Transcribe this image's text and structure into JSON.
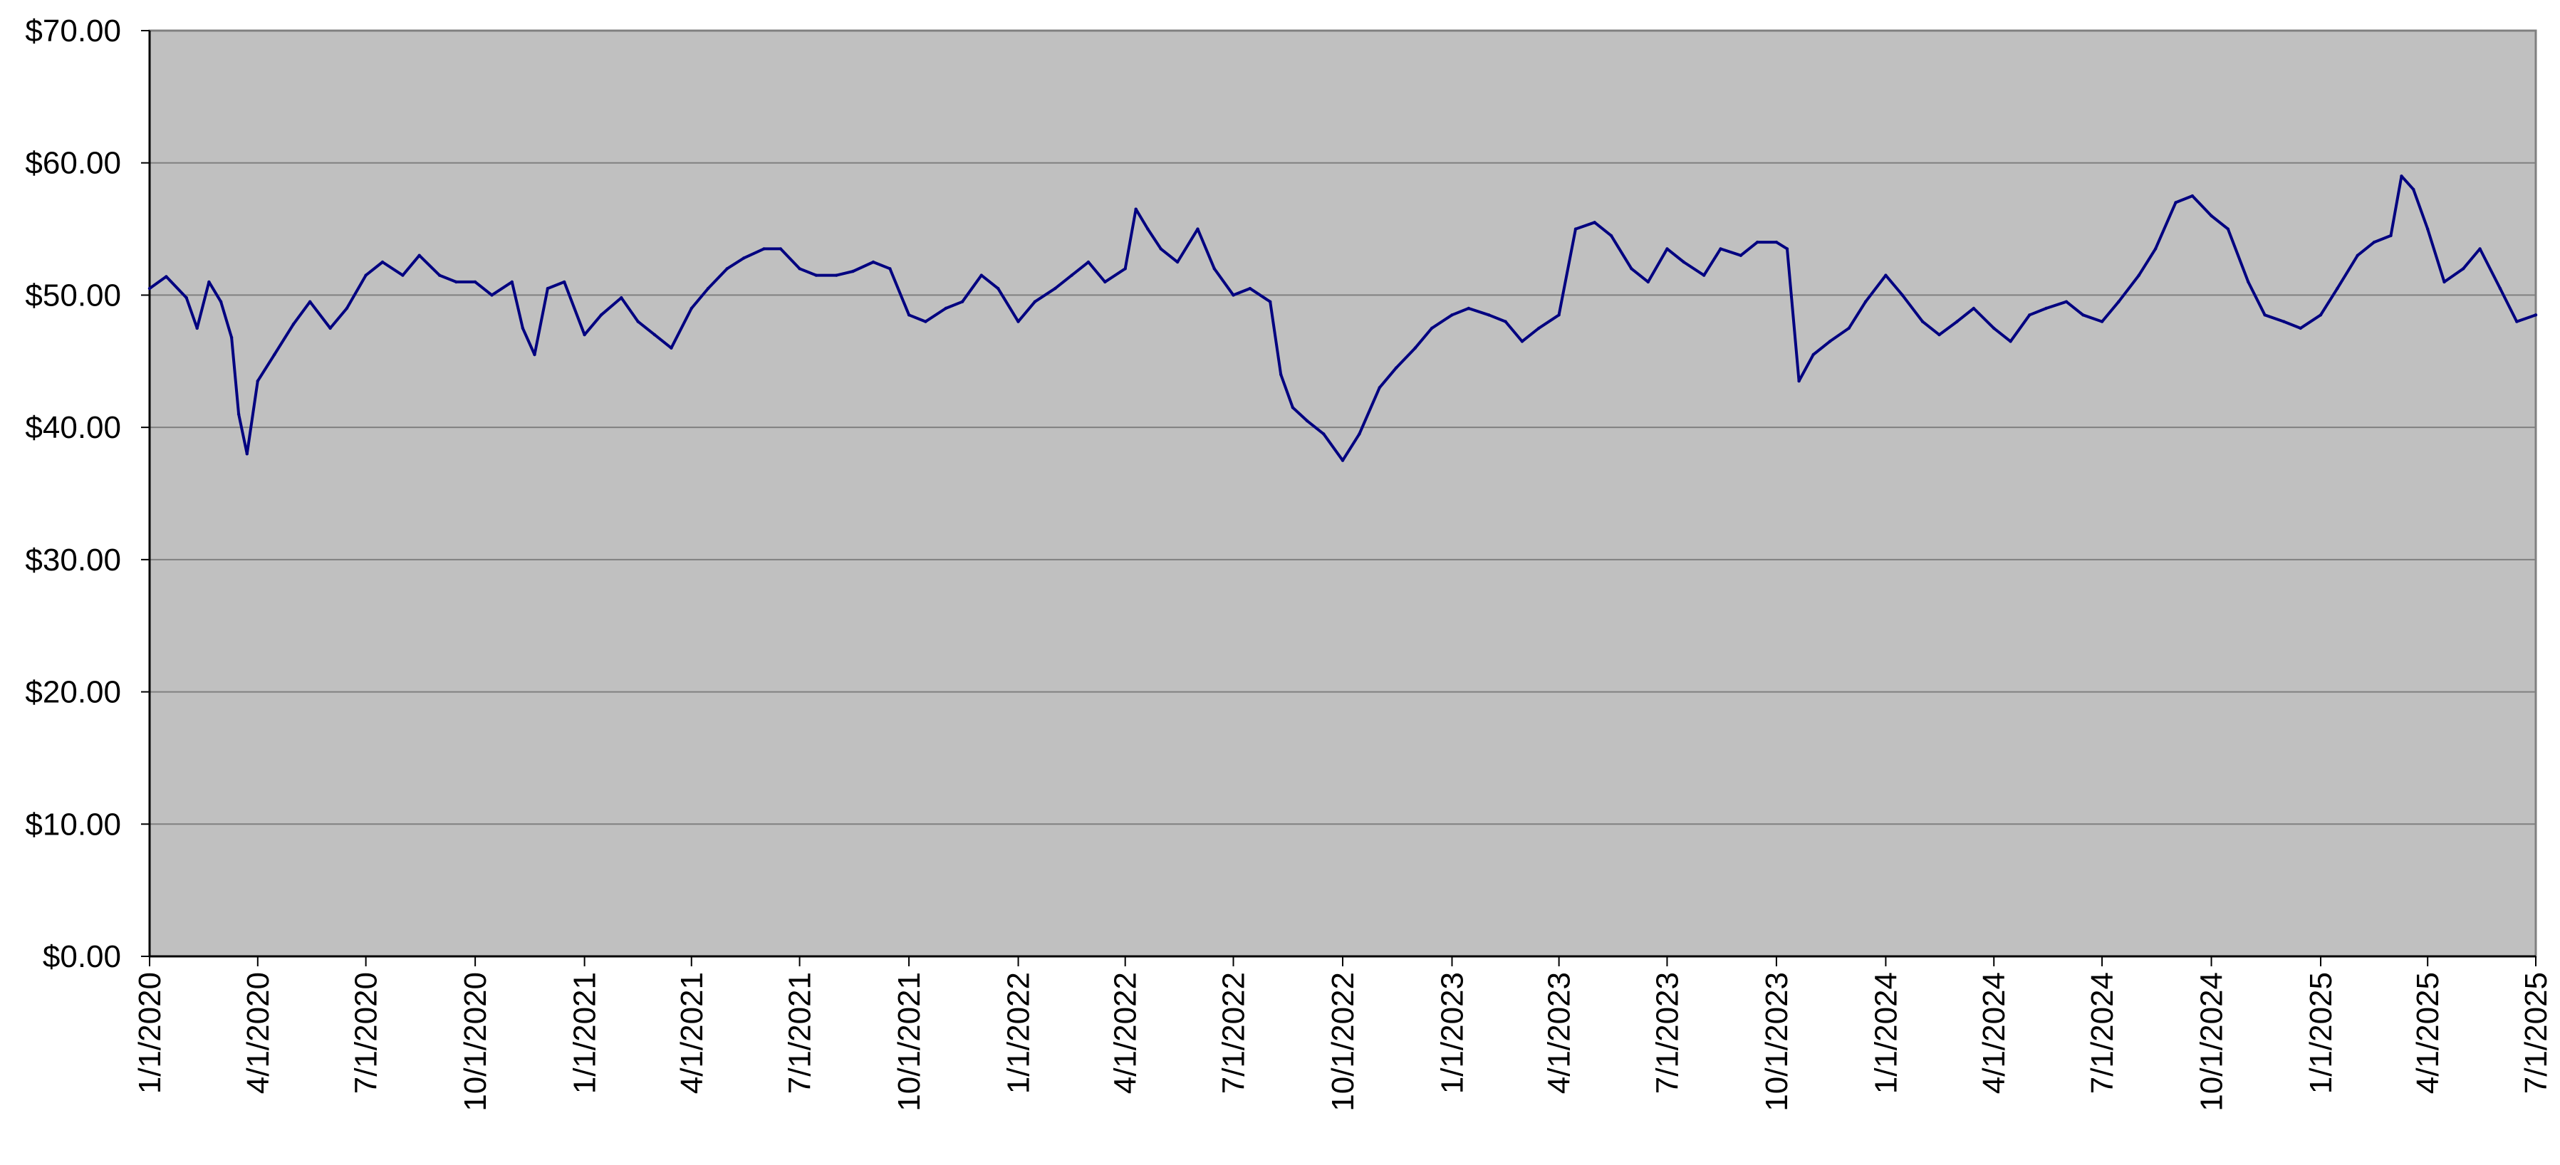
{
  "chart_data": {
    "type": "line",
    "title": "",
    "xlabel": "",
    "ylabel": "",
    "x_tick_labels": [
      "1/1/2020",
      "4/1/2020",
      "7/1/2020",
      "10/1/2020",
      "1/1/2021",
      "4/1/2021",
      "7/1/2021",
      "10/1/2021",
      "1/1/2022",
      "4/1/2022",
      "7/1/2022",
      "10/1/2022",
      "1/1/2023",
      "4/1/2023",
      "7/1/2023",
      "10/1/2023",
      "1/1/2024",
      "4/1/2024",
      "7/1/2024",
      "10/1/2024",
      "1/1/2025",
      "4/1/2025",
      "7/1/2025"
    ],
    "y_tick_labels": [
      "$0.00",
      "$10.00",
      "$20.00",
      "$30.00",
      "$40.00",
      "$50.00",
      "$60.00",
      "$70.00"
    ],
    "xlim": [
      "1/1/2020",
      "7/1/2025"
    ],
    "ylim": [
      0,
      70
    ],
    "grid": true,
    "legend": "none",
    "colors": {
      "plot_background": "#c0c0c0",
      "line": "#000080",
      "gridline": "#808080"
    },
    "series": [
      {
        "x": [
          "1/1/2020",
          "1/15/2020",
          "2/1/2020",
          "2/10/2020",
          "2/20/2020",
          "3/1/2020",
          "3/10/2020",
          "3/16/2020",
          "3/23/2020",
          "4/1/2020",
          "4/15/2020",
          "5/1/2020",
          "5/15/2020",
          "6/1/2020",
          "6/15/2020",
          "7/1/2020",
          "7/15/2020",
          "8/1/2020",
          "8/15/2020",
          "9/1/2020",
          "9/15/2020",
          "10/1/2020",
          "10/15/2020",
          "11/1/2020",
          "11/10/2020",
          "11/20/2020",
          "12/1/2020",
          "12/15/2020",
          "1/1/2021",
          "1/15/2021",
          "2/1/2021",
          "2/15/2021",
          "3/1/2021",
          "3/15/2021",
          "4/1/2021",
          "4/15/2021",
          "5/1/2021",
          "5/15/2021",
          "6/1/2021",
          "6/15/2021",
          "7/1/2021",
          "7/15/2021",
          "8/1/2021",
          "8/15/2021",
          "9/1/2021",
          "9/15/2021",
          "10/1/2021",
          "10/15/2021",
          "11/1/2021",
          "11/15/2021",
          "12/1/2021",
          "12/15/2021",
          "1/1/2022",
          "1/15/2022",
          "2/1/2022",
          "2/15/2022",
          "3/1/2022",
          "3/15/2022",
          "4/1/2022",
          "4/10/2022",
          "4/20/2022",
          "5/1/2022",
          "5/15/2022",
          "6/1/2022",
          "6/15/2022",
          "7/1/2022",
          "7/15/2022",
          "8/1/2022",
          "8/10/2022",
          "8/20/2022",
          "9/1/2022",
          "9/15/2022",
          "10/1/2022",
          "10/15/2022",
          "11/1/2022",
          "11/15/2022",
          "12/1/2022",
          "12/15/2022",
          "1/1/2023",
          "1/15/2023",
          "2/1/2023",
          "2/15/2023",
          "3/1/2023",
          "3/15/2023",
          "4/1/2023",
          "4/15/2023",
          "5/1/2023",
          "5/15/2023",
          "6/1/2023",
          "6/15/2023",
          "7/1/2023",
          "7/15/2023",
          "8/1/2023",
          "8/15/2023",
          "9/1/2023",
          "9/15/2023",
          "10/1/2023",
          "10/10/2023",
          "10/20/2023",
          "11/1/2023",
          "11/15/2023",
          "12/1/2023",
          "12/15/2023",
          "1/1/2024",
          "1/15/2024",
          "2/1/2024",
          "2/15/2024",
          "3/1/2024",
          "3/15/2024",
          "4/1/2024",
          "4/15/2024",
          "5/1/2024",
          "5/15/2024",
          "6/1/2024",
          "6/15/2024",
          "7/1/2024",
          "7/15/2024",
          "8/1/2024",
          "8/15/2024",
          "9/1/2024",
          "9/15/2024",
          "10/1/2024",
          "10/15/2024",
          "11/1/2024",
          "11/15/2024",
          "12/1/2024",
          "12/15/2024",
          "1/1/2025",
          "1/15/2025",
          "2/1/2025",
          "2/15/2025",
          "3/1/2025",
          "3/10/2025",
          "3/20/2025",
          "4/1/2025",
          "4/15/2025",
          "5/1/2025",
          "5/15/2025",
          "6/1/2025",
          "6/15/2025",
          "7/1/2025"
        ],
        "values": [
          50.5,
          51.4,
          49.8,
          47.5,
          51.0,
          49.5,
          46.8,
          41.0,
          38.0,
          43.5,
          45.5,
          47.8,
          49.5,
          47.5,
          49.0,
          51.5,
          52.5,
          51.5,
          53.0,
          51.5,
          51.0,
          51.0,
          50.0,
          51.0,
          47.5,
          45.5,
          50.5,
          51.0,
          47.0,
          48.5,
          49.8,
          48.0,
          47.0,
          46.0,
          49.0,
          50.5,
          52.0,
          52.8,
          53.5,
          53.5,
          52.0,
          51.5,
          51.5,
          51.8,
          52.5,
          52.0,
          48.5,
          48.0,
          49.0,
          49.5,
          51.5,
          50.5,
          48.0,
          49.5,
          50.5,
          51.5,
          52.5,
          51.0,
          52.0,
          56.5,
          55.0,
          53.5,
          52.5,
          55.0,
          52.0,
          50.0,
          50.5,
          49.5,
          44.0,
          41.5,
          40.5,
          39.5,
          37.5,
          39.5,
          43.0,
          44.5,
          46.0,
          47.5,
          48.5,
          49.0,
          48.5,
          48.0,
          46.5,
          47.5,
          48.5,
          55.0,
          55.5,
          54.5,
          52.0,
          51.0,
          53.5,
          52.5,
          51.5,
          53.5,
          53.0,
          54.0,
          54.0,
          53.5,
          43.5,
          45.5,
          46.5,
          47.5,
          49.5,
          51.5,
          50.0,
          48.0,
          47.0,
          48.0,
          49.0,
          47.5,
          46.5,
          48.5,
          49.0,
          49.5,
          48.5,
          48.0,
          49.5,
          51.5,
          53.5,
          57.0,
          57.5,
          56.0,
          55.0,
          51.0,
          48.5,
          48.0,
          47.5,
          48.5,
          50.5,
          53.0,
          54.0,
          54.5,
          59.0,
          58.0,
          55.0,
          51.0,
          52.0,
          53.5,
          50.5,
          48.0,
          48.5
        ]
      }
    ]
  }
}
